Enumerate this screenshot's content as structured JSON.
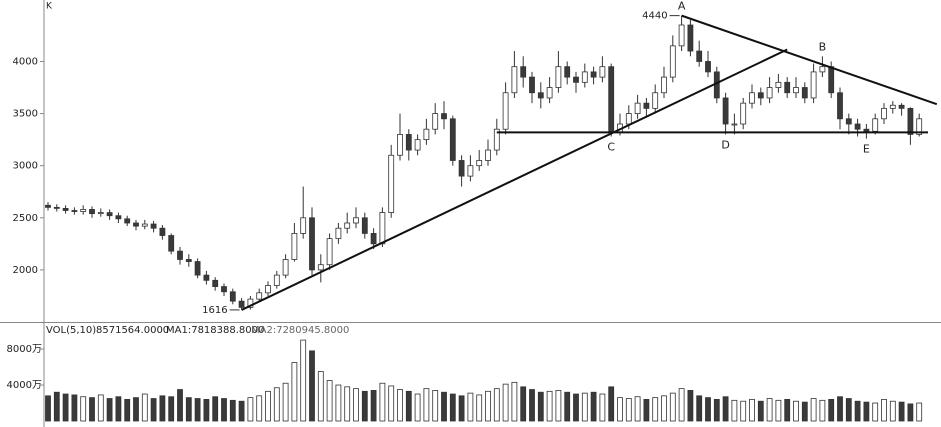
{
  "chart_data": {
    "type": "candlestick",
    "corner_label": "K",
    "open": [
      2620,
      2600,
      2590,
      2570,
      2560,
      2580,
      2540,
      2550,
      2520,
      2490,
      2450,
      2420,
      2440,
      2400,
      2330,
      2180,
      2100,
      2080,
      1950,
      1900,
      1840,
      1790,
      1700,
      1640,
      1720,
      1780,
      1850,
      1950,
      2100,
      2350,
      2500,
      2000,
      2050,
      2300,
      2400,
      2450,
      2500,
      2350,
      2250,
      2550,
      3100,
      3300,
      3150,
      3250,
      3350,
      3500,
      3450,
      3050,
      2900,
      3000,
      3050,
      3150,
      3350,
      3700,
      3950,
      3850,
      3700,
      3650,
      3750,
      3950,
      3850,
      3800,
      3900,
      3850,
      3950,
      3320,
      3400,
      3500,
      3600,
      3550,
      3700,
      3850,
      4150,
      4350,
      4100,
      4000,
      3900,
      3650,
      3400,
      3400,
      3600,
      3700,
      3650,
      3750,
      3800,
      3700,
      3750,
      3650,
      3900,
      3950,
      3700,
      3450,
      3400,
      3350,
      3330,
      3450,
      3550,
      3580,
      3550,
      3300
    ],
    "high": [
      2650,
      2630,
      2620,
      2600,
      2620,
      2610,
      2590,
      2580,
      2550,
      2520,
      2480,
      2480,
      2470,
      2430,
      2350,
      2220,
      2150,
      2110,
      1990,
      1930,
      1870,
      1820,
      1730,
      1750,
      1820,
      1890,
      1990,
      2150,
      2450,
      2800,
      2600,
      2150,
      2350,
      2450,
      2550,
      2600,
      2550,
      2400,
      2600,
      3200,
      3500,
      3350,
      3300,
      3450,
      3600,
      3620,
      3480,
      3100,
      3100,
      3150,
      3250,
      3450,
      3800,
      4100,
      4050,
      3900,
      3800,
      3850,
      4100,
      4000,
      3900,
      3980,
      3950,
      4050,
      3980,
      3500,
      3580,
      3680,
      3650,
      3780,
      3950,
      4250,
      4440,
      4400,
      4200,
      4100,
      3950,
      3700,
      3500,
      3650,
      3780,
      3750,
      3850,
      3880,
      3850,
      3850,
      3800,
      3980,
      4050,
      4000,
      3750,
      3500,
      3450,
      3400,
      3500,
      3600,
      3620,
      3600,
      3560,
      3500
    ],
    "low": [
      2570,
      2560,
      2540,
      2530,
      2530,
      2500,
      2510,
      2480,
      2450,
      2420,
      2380,
      2390,
      2360,
      2290,
      2150,
      2050,
      2030,
      1920,
      1860,
      1800,
      1750,
      1670,
      1616,
      1620,
      1700,
      1750,
      1820,
      1920,
      2080,
      2300,
      1950,
      1880,
      2000,
      2250,
      2350,
      2400,
      2300,
      2200,
      2220,
      2500,
      3050,
      3050,
      3100,
      3200,
      3300,
      3350,
      3000,
      2800,
      2850,
      2950,
      3000,
      3100,
      3300,
      3650,
      3750,
      3600,
      3550,
      3600,
      3700,
      3780,
      3700,
      3750,
      3780,
      3800,
      3280,
      3290,
      3350,
      3450,
      3480,
      3500,
      3650,
      3800,
      4100,
      4050,
      3950,
      3850,
      3600,
      3300,
      3300,
      3350,
      3550,
      3580,
      3600,
      3700,
      3650,
      3650,
      3600,
      3600,
      3850,
      3650,
      3350,
      3300,
      3280,
      3260,
      3300,
      3400,
      3500,
      3480,
      3200,
      3280
    ],
    "close": [
      2600,
      2590,
      2570,
      2560,
      2580,
      2540,
      2550,
      2520,
      2490,
      2450,
      2420,
      2440,
      2400,
      2330,
      2180,
      2100,
      2080,
      1950,
      1900,
      1840,
      1790,
      1700,
      1640,
      1720,
      1780,
      1850,
      1950,
      2100,
      2350,
      2500,
      2000,
      2050,
      2300,
      2400,
      2450,
      2500,
      2350,
      2250,
      2550,
      3100,
      3300,
      3150,
      3250,
      3350,
      3500,
      3450,
      3050,
      2900,
      3000,
      3050,
      3150,
      3350,
      3700,
      3950,
      3850,
      3700,
      3650,
      3750,
      3950,
      3850,
      3800,
      3900,
      3850,
      3950,
      3320,
      3400,
      3500,
      3600,
      3550,
      3700,
      3850,
      4150,
      4350,
      4100,
      4000,
      3900,
      3650,
      3400,
      3400,
      3600,
      3700,
      3650,
      3750,
      3800,
      3700,
      3750,
      3650,
      3900,
      3950,
      3700,
      3450,
      3400,
      3350,
      3330,
      3450,
      3550,
      3580,
      3550,
      3300,
      3450
    ],
    "volume": [
      2800,
      3200,
      3000,
      2900,
      2700,
      2600,
      2900,
      2500,
      2700,
      2400,
      2600,
      3000,
      2500,
      2800,
      2700,
      3500,
      2600,
      2500,
      2400,
      2700,
      2500,
      2300,
      2200,
      2600,
      2800,
      3300,
      3700,
      4200,
      6500,
      9000,
      7800,
      5500,
      4500,
      4000,
      3800,
      3600,
      3300,
      3400,
      4200,
      3900,
      3500,
      3300,
      3000,
      3600,
      3400,
      3200,
      3000,
      2800,
      3100,
      2900,
      3300,
      3600,
      4100,
      4300,
      3800,
      3500,
      3200,
      3300,
      3400,
      3200,
      3000,
      3100,
      3200,
      3000,
      3800,
      2600,
      2500,
      2700,
      2400,
      2600,
      2800,
      3100,
      3600,
      3400,
      2800,
      2600,
      2400,
      2700,
      2300,
      2200,
      2400,
      2200,
      2500,
      2300,
      2400,
      2200,
      2100,
      2500,
      2300,
      2400,
      2700,
      2500,
      2200,
      2100,
      2000,
      2400,
      2200,
      2100,
      1900,
      2000
    ],
    "up_color": "#ffffff",
    "down_color": "#3a3a3a",
    "edge_color": "#333333",
    "ylim": [
      1500,
      4590
    ],
    "yticks": [
      2000,
      2500,
      3000,
      3500,
      4000
    ],
    "volume_ylim": [
      0,
      10900
    ],
    "volume_yticks": [
      {
        "value": 8000,
        "label": "8000万"
      },
      {
        "value": 4000,
        "label": "4000万"
      }
    ],
    "volume_title": {
      "name": "VOL(5,10)",
      "value": "8571564.0000",
      "ma1": "MA1:7818388.8000",
      "ma2": "MA2:7280945.8000"
    },
    "trend_lines": [
      {
        "x": [
          22,
          84
        ],
        "y": [
          1616,
          4115
        ]
      },
      {
        "x": [
          72,
          101
        ],
        "y": [
          4440,
          3590
        ]
      },
      {
        "x": [
          51,
          100
        ],
        "y": [
          3320,
          3320
        ]
      }
    ],
    "extremes": [
      {
        "x": 72,
        "value": 4440
      },
      {
        "x": 22,
        "value": 1616
      }
    ],
    "annotations": [
      {
        "text": "A",
        "x": 72,
        "y": 4440,
        "anchor": "above"
      },
      {
        "text": "B",
        "x": 88,
        "y": 4050,
        "anchor": "above"
      },
      {
        "text": "C",
        "x": 64,
        "y": 3280,
        "anchor": "below"
      },
      {
        "text": "D",
        "x": 77,
        "y": 3300,
        "anchor": "below"
      },
      {
        "text": "E",
        "x": 93,
        "y": 3260,
        "anchor": "below"
      }
    ]
  }
}
